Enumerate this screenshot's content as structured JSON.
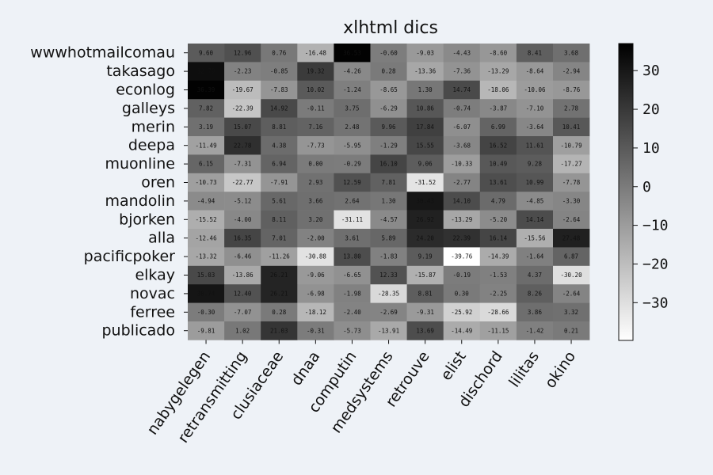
{
  "chart_data": {
    "type": "heatmap",
    "title": "xlhtml dics",
    "colormap": "gray_r",
    "vmin": -39.76,
    "vmax": 37.0,
    "colorbar_ticks": [
      30,
      20,
      10,
      0,
      -10,
      -20,
      -30
    ],
    "colorbar_tick_labels": [
      "30",
      "20",
      "10",
      "0",
      "−10",
      "−20",
      "−30"
    ],
    "rows": [
      "wwwhotmailcomau",
      "takasago",
      "econlog",
      "galleys",
      "merin",
      "deepa",
      "muonline",
      "oren",
      "mandolin",
      "bjorken",
      "alla",
      "pacificpoker",
      "elkay",
      "novac",
      "ferree",
      "publicado"
    ],
    "columns": [
      "nabygelegen",
      "retransmitting",
      "clusiaceae",
      "dnaa",
      "computin",
      "medsystems",
      "retrouve",
      "elist",
      "dischord",
      "lilitas",
      "okino"
    ],
    "values": [
      [
        9.6,
        12.96,
        0.76,
        -16.48,
        36.53,
        -0.6,
        -9.03,
        -4.43,
        -8.6,
        8.41,
        3.68
      ],
      [
        32.79,
        -2.23,
        -0.85,
        19.32,
        -4.26,
        0.28,
        -13.36,
        -7.36,
        -13.29,
        -8.64,
        -2.94
      ],
      [
        36.39,
        -19.67,
        -7.83,
        10.02,
        -1.24,
        -8.65,
        1.3,
        14.74,
        -18.06,
        -10.06,
        -8.76
      ],
      [
        7.82,
        -22.39,
        14.92,
        -0.11,
        3.75,
        -6.29,
        10.86,
        -0.74,
        -3.87,
        -7.1,
        2.78
      ],
      [
        3.19,
        15.07,
        8.81,
        7.16,
        2.48,
        9.96,
        17.84,
        -6.07,
        6.99,
        -3.64,
        10.41
      ],
      [
        -11.49,
        22.78,
        4.38,
        -7.73,
        -5.95,
        -1.29,
        15.55,
        -3.68,
        16.52,
        11.61,
        -10.79
      ],
      [
        6.15,
        -7.31,
        6.94,
        0.0,
        -0.29,
        16.1,
        9.06,
        -10.33,
        10.49,
        9.28,
        -17.27
      ],
      [
        -10.73,
        -22.77,
        -7.91,
        2.93,
        12.59,
        7.81,
        -31.52,
        -2.77,
        13.61,
        10.99,
        -7.78
      ],
      [
        -4.94,
        -5.12,
        5.61,
        3.66,
        2.64,
        1.3,
        30.43,
        14.1,
        4.79,
        -4.85,
        -3.3
      ],
      [
        -15.52,
        -4.0,
        8.11,
        3.2,
        -31.11,
        -4.57,
        26.92,
        -13.29,
        -5.2,
        14.14,
        -2.64
      ],
      [
        -12.46,
        16.35,
        7.01,
        -2.0,
        3.61,
        5.89,
        24.2,
        22.39,
        16.14,
        -15.56,
        27.48
      ],
      [
        -13.32,
        -6.46,
        -11.26,
        -30.88,
        13.8,
        -1.83,
        9.19,
        -39.76,
        -14.39,
        -1.64,
        6.87
      ],
      [
        15.03,
        -13.86,
        26.21,
        -9.06,
        -6.65,
        12.33,
        -15.87,
        -0.19,
        -1.53,
        4.37,
        -30.2
      ],
      [
        30.74,
        12.4,
        26.21,
        -6.98,
        -1.98,
        -28.35,
        8.81,
        0.3,
        -2.25,
        8.26,
        -2.64
      ],
      [
        -0.3,
        -7.07,
        0.28,
        -18.12,
        -2.4,
        -2.69,
        -9.31,
        -25.92,
        -28.66,
        3.86,
        3.32
      ],
      [
        -9.81,
        1.02,
        21.03,
        -0.31,
        -5.73,
        -13.91,
        13.69,
        -14.49,
        -11.15,
        -1.42,
        0.21
      ]
    ]
  }
}
